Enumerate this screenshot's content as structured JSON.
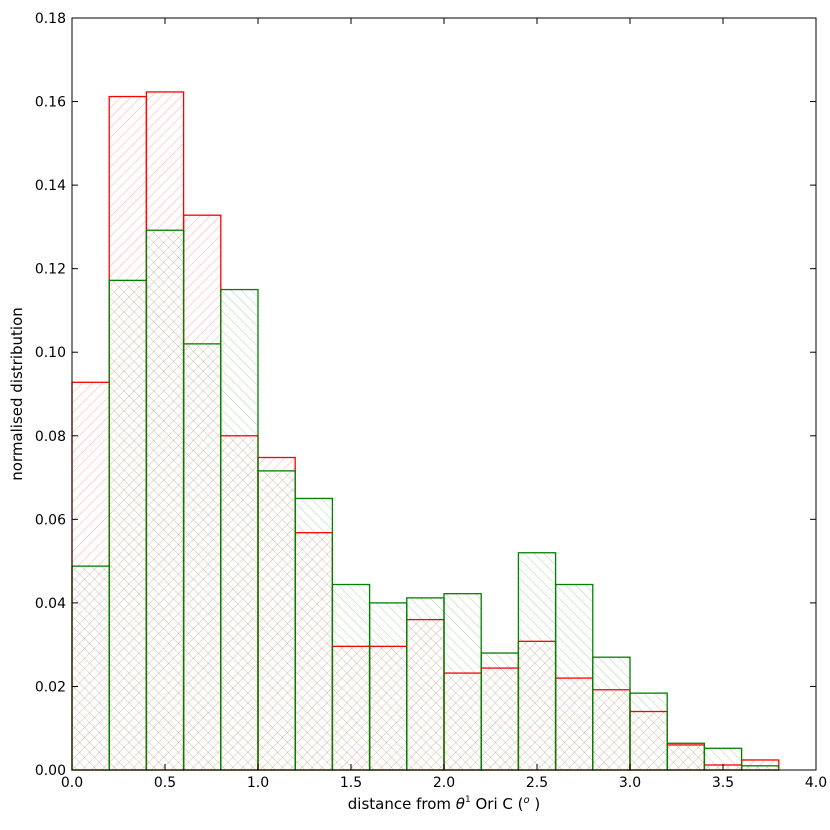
{
  "chart_data": {
    "type": "bar",
    "histogram": true,
    "xlabel_parts": {
      "prefix": "distance from ",
      "symbol": "θ",
      "superscript": "1",
      "suffix": "  Ori C (",
      "unit_symbol": "o",
      "close": " )"
    },
    "ylabel": "normalised distribution",
    "xlim": [
      0.0,
      4.0
    ],
    "ylim": [
      0.0,
      0.18
    ],
    "xticks": [
      "0.0",
      "0.5",
      "1.0",
      "1.5",
      "2.0",
      "2.5",
      "3.0",
      "3.5",
      "4.0"
    ],
    "yticks": [
      "0.00",
      "0.02",
      "0.04",
      "0.06",
      "0.08",
      "0.10",
      "0.12",
      "0.14",
      "0.16",
      "0.18"
    ],
    "bin_edges": [
      0.0,
      0.2,
      0.4,
      0.6,
      0.8,
      1.0,
      1.2,
      1.4,
      1.6,
      1.8,
      2.0,
      2.2,
      2.4,
      2.6,
      2.8,
      3.0,
      3.2,
      3.4,
      3.6,
      3.8
    ],
    "grid": false,
    "series": [
      {
        "color": "#ff0000",
        "hatch": "forward-diagonal",
        "values": [
          0.0928,
          0.1612,
          0.1623,
          0.1328,
          0.08,
          0.0748,
          0.0568,
          0.0296,
          0.0296,
          0.036,
          0.0232,
          0.0244,
          0.0308,
          0.022,
          0.0192,
          0.014,
          0.006,
          0.0012,
          0.0024
        ]
      },
      {
        "color": "#008000",
        "hatch": "back-diagonal",
        "values": [
          0.0488,
          0.1172,
          0.1292,
          0.102,
          0.115,
          0.0716,
          0.065,
          0.0444,
          0.04,
          0.0412,
          0.0422,
          0.028,
          0.052,
          0.0444,
          0.027,
          0.0184,
          0.0064,
          0.0052,
          0.001
        ]
      }
    ]
  }
}
